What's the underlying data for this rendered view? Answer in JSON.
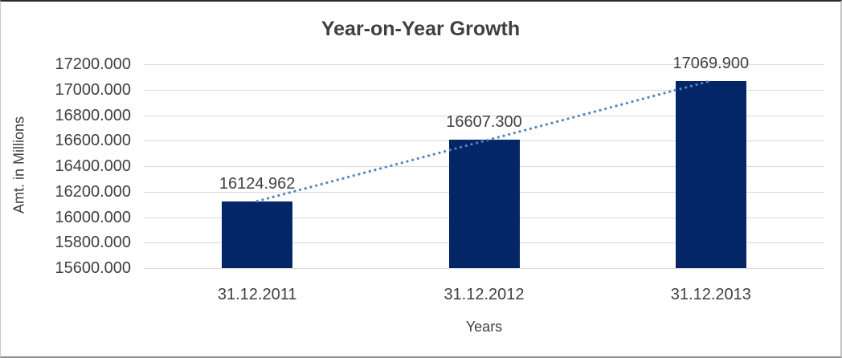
{
  "chart_data": {
    "type": "bar",
    "title": "Year-on-Year Growth",
    "categories": [
      "31.12.2011",
      "31.12.2012",
      "31.12.2013"
    ],
    "values": [
      16124.962,
      16607.3,
      17069.9
    ],
    "value_labels": [
      "16124.962",
      "16607.300",
      "17069.900"
    ],
    "xlabel": "Years",
    "ylabel": "Amt. in Millions",
    "ylim": [
      15600,
      17200
    ],
    "ytick_step": 200,
    "ytick_labels": [
      "17200.000",
      "17000.000",
      "16800.000",
      "16600.000",
      "16400.000",
      "16200.000",
      "16000.000",
      "15800.000",
      "15600.000"
    ],
    "grid": true,
    "legend_position": "none",
    "trendline": {
      "type": "linear",
      "style": "dotted",
      "color": "#4e86c4"
    },
    "colors": {
      "bar": "#042666",
      "gridline": "#d9d9d9",
      "title_text": "#3f3f3f",
      "axis_text": "#404040",
      "data_label_text": "#3f3f3f",
      "background": "#ffffff"
    }
  }
}
